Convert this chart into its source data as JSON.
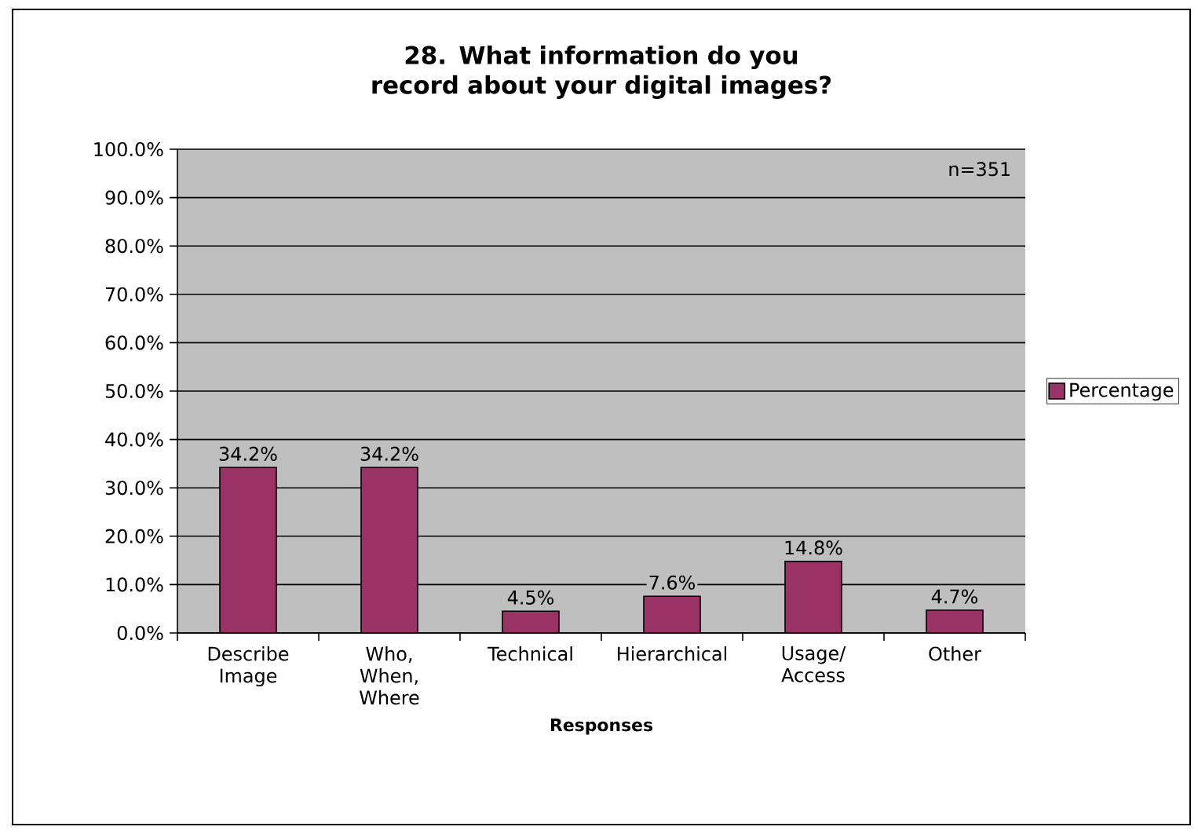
{
  "chart_data": {
    "type": "bar",
    "title": "28. What information do you record about your digital images?",
    "xlabel": "Responses",
    "categories": [
      "Describe Image",
      "Who, When, Where",
      "Technical",
      "Hierarchical",
      "Usage/ Access",
      "Other"
    ],
    "series": [
      {
        "name": "Percentage",
        "color": "#993366",
        "values": [
          34.2,
          34.2,
          4.5,
          7.6,
          14.8,
          4.7
        ],
        "value_labels": [
          "34.2%",
          "34.2%",
          "4.5%",
          "7.6%",
          "14.8%",
          "4.7%"
        ]
      }
    ],
    "ylim": [
      0,
      100
    ],
    "yticks": [
      {
        "value": 0,
        "label": "0.0%"
      },
      {
        "value": 10,
        "label": "10.0%"
      },
      {
        "value": 20,
        "label": "20.0%"
      },
      {
        "value": 30,
        "label": "30.0%"
      },
      {
        "value": 40,
        "label": "40.0%"
      },
      {
        "value": 50,
        "label": "50.0%"
      },
      {
        "value": 60,
        "label": "60.0%"
      },
      {
        "value": 70,
        "label": "70.0%"
      },
      {
        "value": 80,
        "label": "80.0%"
      },
      {
        "value": 90,
        "label": "90.0%"
      },
      {
        "value": 100,
        "label": "100.0%"
      }
    ],
    "annotations": [
      "n=351"
    ],
    "grid": "y",
    "legend": "right"
  }
}
